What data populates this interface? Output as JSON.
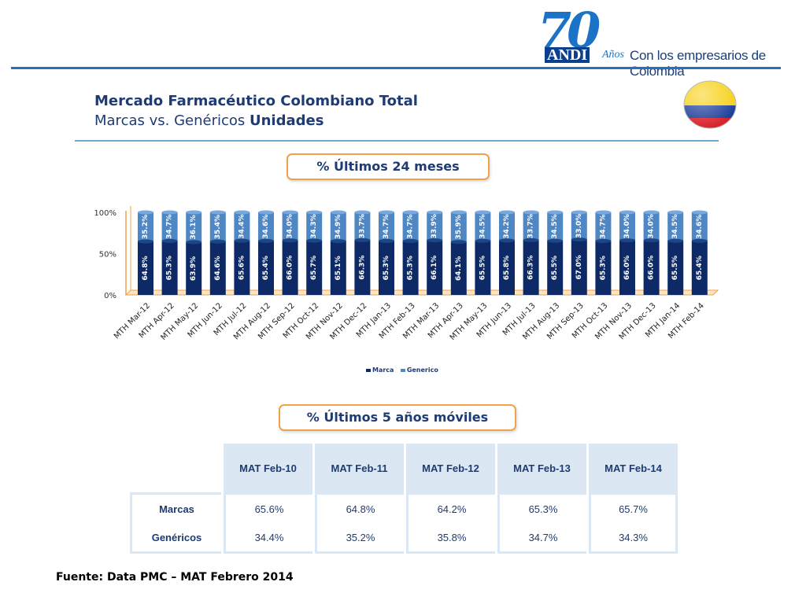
{
  "header": {
    "logo_number": "70",
    "logo_brand": "ANDI",
    "logo_anos": "Años",
    "logo_tagline": "Con los empresarios de Colombia"
  },
  "title": {
    "line1": "Mercado Farmacéutico Colombiano Total",
    "line2_prefix": "Marcas vs. Genéricos ",
    "line2_bold": "Unidades"
  },
  "callout1": "% Últimos 24 meses",
  "callout2": "% Últimos 5 años móviles",
  "colors": {
    "marca": "#0d2a66",
    "generico": "#4f87c5",
    "axis_accent": "#f0a14a"
  },
  "chart_data": {
    "type": "bar",
    "stacked": true,
    "title": "% Últimos 24 meses",
    "categories": [
      "MTH Mar-12",
      "MTH Apr-12",
      "MTH May-12",
      "MTH Jun-12",
      "MTH Jul-12",
      "MTH Aug-12",
      "MTH Sep-12",
      "MTH Oct-12",
      "MTH Nov-12",
      "MTH Dec-12",
      "MTH Jan-13",
      "MTH Feb-13",
      "MTH Mar-13",
      "MTH Apr-13",
      "MTH May-13",
      "MTH Jun-13",
      "MTH Jul-13",
      "MTH Aug-13",
      "MTH Sep-13",
      "MTH Oct-13",
      "MTH Nov-13",
      "MTH Dec-13",
      "MTH Jan-14",
      "MTH Feb-14"
    ],
    "series": [
      {
        "name": "Marca",
        "values": [
          64.8,
          65.3,
          63.9,
          64.6,
          65.6,
          65.4,
          66.0,
          65.7,
          65.1,
          66.3,
          65.3,
          65.3,
          66.1,
          64.1,
          65.5,
          65.8,
          66.3,
          65.5,
          67.0,
          65.3,
          66.0,
          66.0,
          65.5,
          65.4
        ]
      },
      {
        "name": "Generico",
        "values": [
          35.2,
          34.7,
          36.1,
          35.4,
          34.4,
          34.6,
          34.0,
          34.3,
          34.9,
          33.7,
          34.7,
          34.7,
          33.9,
          35.9,
          34.5,
          34.2,
          33.7,
          34.5,
          33.0,
          34.7,
          34.0,
          34.0,
          34.5,
          34.6
        ]
      }
    ],
    "yticks": [
      "0%",
      "50%",
      "100%"
    ],
    "ylim": [
      0,
      100
    ],
    "legend_position": "bottom"
  },
  "table": {
    "headers": [
      "MAT Feb-10",
      "MAT Feb-11",
      "MAT Feb-12",
      "MAT Feb-13",
      "MAT Feb-14"
    ],
    "rows": [
      {
        "label": "Marcas",
        "values": [
          "65.6%",
          "64.8%",
          "64.2%",
          "65.3%",
          "65.7%"
        ]
      },
      {
        "label": "Genéricos",
        "values": [
          "34.4%",
          "35.2%",
          "35.8%",
          "34.7%",
          "34.3%"
        ]
      }
    ]
  },
  "source": "Fuente: Data PMC – MAT Febrero 2014"
}
